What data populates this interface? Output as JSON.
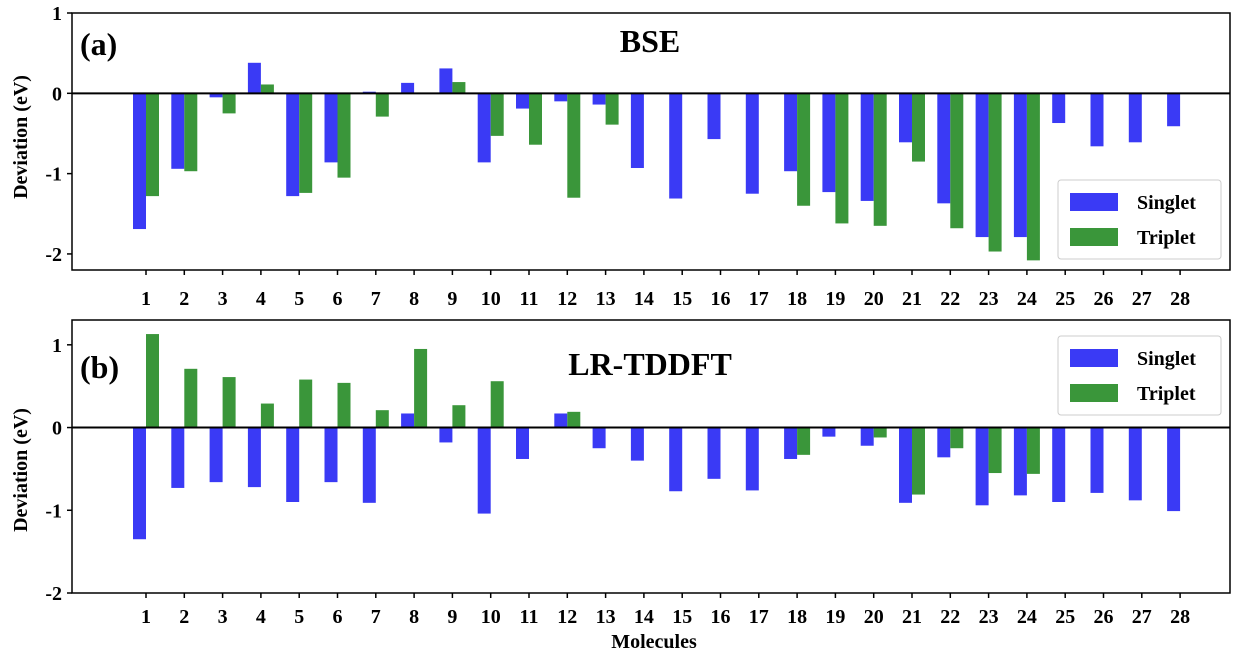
{
  "chart_data": {
    "x_axis_label": "Molecules",
    "y_axis_label": "Deviation (eV)",
    "categories": [
      "1",
      "2",
      "3",
      "4",
      "5",
      "6",
      "7",
      "8",
      "9",
      "10",
      "11",
      "12",
      "13",
      "14",
      "15",
      "16",
      "17",
      "18",
      "19",
      "20",
      "21",
      "22",
      "23",
      "24",
      "25",
      "26",
      "27",
      "28"
    ],
    "colors": {
      "Singlet": "#3a3af5",
      "Triplet": "#3a963a"
    },
    "panels": [
      {
        "letter": "(a)",
        "title": "BSE",
        "type": "bar",
        "ylim": [
          -2.2,
          1
        ],
        "yticks": [
          1,
          0,
          -1,
          -2
        ],
        "ytick_labels": [
          "1",
          "0",
          "-1",
          "-2"
        ],
        "legend_position": "bottom-right",
        "series": [
          {
            "name": "Singlet",
            "values": [
              -1.69,
              -0.94,
              -0.05,
              0.38,
              -1.28,
              -0.86,
              0.02,
              0.13,
              0.31,
              -0.86,
              -0.19,
              -0.1,
              -0.14,
              -0.93,
              -1.31,
              -0.57,
              -1.25,
              -0.97,
              -1.23,
              -1.34,
              -0.61,
              -1.37,
              -1.79,
              -1.79,
              -0.37,
              -0.66,
              -0.61,
              -0.41
            ]
          },
          {
            "name": "Triplet",
            "values": [
              -1.28,
              -0.97,
              -0.25,
              0.11,
              -1.24,
              -1.05,
              -0.29,
              null,
              0.14,
              -0.53,
              -0.64,
              -1.3,
              -0.39,
              null,
              null,
              null,
              null,
              -1.4,
              -1.62,
              -1.65,
              -0.85,
              -1.68,
              -1.97,
              -2.08,
              null,
              null,
              null,
              null
            ]
          }
        ]
      },
      {
        "letter": "(b)",
        "title": "LR-TDDFT",
        "type": "bar",
        "ylim": [
          -2,
          1.3
        ],
        "yticks": [
          1,
          0,
          -1,
          -2
        ],
        "ytick_labels": [
          "1",
          "0",
          "-1",
          "-2"
        ],
        "legend_position": "top-right",
        "series": [
          {
            "name": "Singlet",
            "values": [
              -1.35,
              -0.73,
              -0.66,
              -0.72,
              -0.9,
              -0.66,
              -0.91,
              0.17,
              -0.18,
              -1.04,
              -0.38,
              0.17,
              -0.25,
              -0.4,
              -0.77,
              -0.62,
              -0.76,
              -0.38,
              -0.11,
              -0.22,
              -0.91,
              -0.36,
              -0.94,
              -0.82,
              -0.9,
              -0.79,
              -0.88,
              -1.01
            ]
          },
          {
            "name": "Triplet",
            "values": [
              1.13,
              0.71,
              0.61,
              0.29,
              0.58,
              0.54,
              0.21,
              0.95,
              0.27,
              0.56,
              null,
              0.19,
              null,
              null,
              null,
              null,
              null,
              -0.33,
              null,
              -0.12,
              -0.81,
              -0.25,
              -0.55,
              -0.56,
              null,
              null,
              null,
              null
            ]
          }
        ]
      }
    ]
  }
}
